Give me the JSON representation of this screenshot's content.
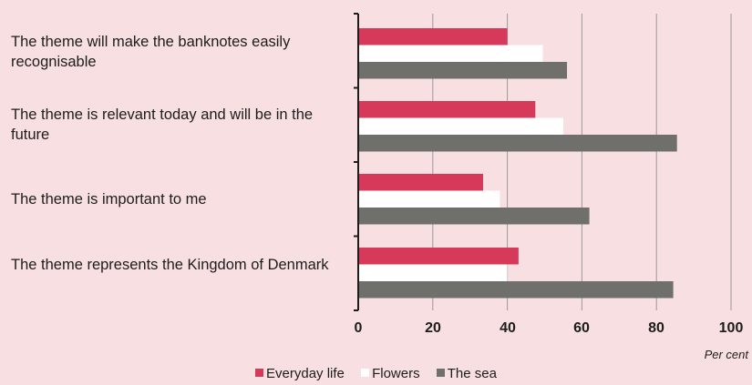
{
  "chart_data": {
    "type": "bar",
    "orientation": "horizontal",
    "categories": [
      "The theme will make the banknotes easily recognisable",
      "The theme is relevant today and will be in the future",
      "The theme is important to me",
      "The theme represents the Kingdom of Denmark"
    ],
    "series": [
      {
        "name": "Everyday life",
        "color": "#d6395a",
        "values": [
          40,
          47.5,
          33.5,
          43
        ]
      },
      {
        "name": "Flowers",
        "color": "#ffffff",
        "values": [
          49.5,
          55,
          38,
          40
        ]
      },
      {
        "name": "The sea",
        "color": "#6f6f6b",
        "values": [
          56,
          85.5,
          62,
          84.5
        ]
      }
    ],
    "xlim": [
      0,
      100
    ],
    "xticks": [
      "0",
      "20",
      "40",
      "60",
      "80",
      "100"
    ],
    "xunit": "Per cent",
    "grid": true,
    "legend_position": "bottom"
  }
}
